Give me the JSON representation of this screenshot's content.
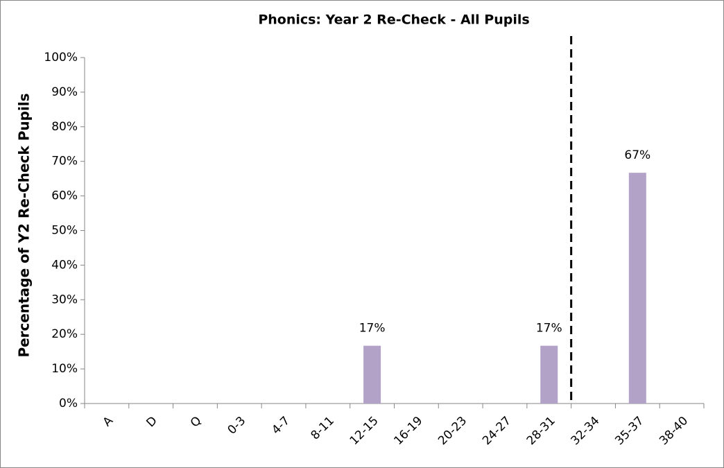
{
  "chart_data": {
    "type": "bar",
    "title": "Phonics: Year 2 Re-Check - All Pupils",
    "y_label": "Percentage of Y2 Re-Check Pupils",
    "categories": [
      "A",
      "D",
      "Q",
      "0-3",
      "4-7",
      "8-11",
      "12-15",
      "16-19",
      "20-23",
      "24-27",
      "28-31",
      "32-34",
      "35-37",
      "38-40"
    ],
    "values": [
      0,
      0,
      0,
      0,
      0,
      0,
      16.7,
      0,
      0,
      0,
      16.7,
      0,
      66.7,
      0
    ],
    "value_labels": [
      null,
      null,
      null,
      null,
      null,
      null,
      "17%",
      null,
      null,
      null,
      "17%",
      null,
      "67%",
      null
    ],
    "color": "#b3a2c7",
    "ylim": [
      0,
      100
    ],
    "yticks": [
      {
        "value": 0,
        "label": "0%"
      },
      {
        "value": 10,
        "label": "10%"
      },
      {
        "value": 20,
        "label": "20%"
      },
      {
        "value": 30,
        "label": "30%"
      },
      {
        "value": 40,
        "label": "40%"
      },
      {
        "value": 50,
        "label": "50%"
      },
      {
        "value": 60,
        "label": "60%"
      },
      {
        "value": 70,
        "label": "70%"
      },
      {
        "value": 80,
        "label": "80%"
      },
      {
        "value": 90,
        "label": "90%"
      },
      {
        "value": 100,
        "label": "100%"
      }
    ],
    "grid": false
  }
}
